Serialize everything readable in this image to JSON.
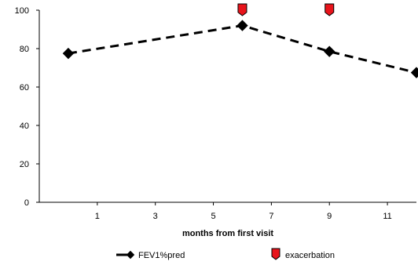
{
  "chart_data": {
    "type": "line",
    "xlabel": "months from first visit",
    "ylabel": "",
    "xlim": [
      -1,
      12
    ],
    "ylim": [
      0,
      100
    ],
    "x_ticks": [
      1,
      3,
      5,
      7,
      9,
      11
    ],
    "y_ticks": [
      0,
      20,
      40,
      60,
      80,
      100
    ],
    "series": [
      {
        "name": "FEV1%pred",
        "marker": "diamond",
        "line_style": "dashed",
        "color": "#000000",
        "x": [
          0,
          6,
          9,
          12
        ],
        "y": [
          77.5,
          92,
          78.5,
          67.5
        ]
      },
      {
        "name": "exacerbation",
        "marker": "shield",
        "color": "#e8141b",
        "x": [
          6,
          9
        ],
        "y": [
          100,
          100
        ]
      }
    ],
    "legend_position": "bottom",
    "grid": false
  }
}
